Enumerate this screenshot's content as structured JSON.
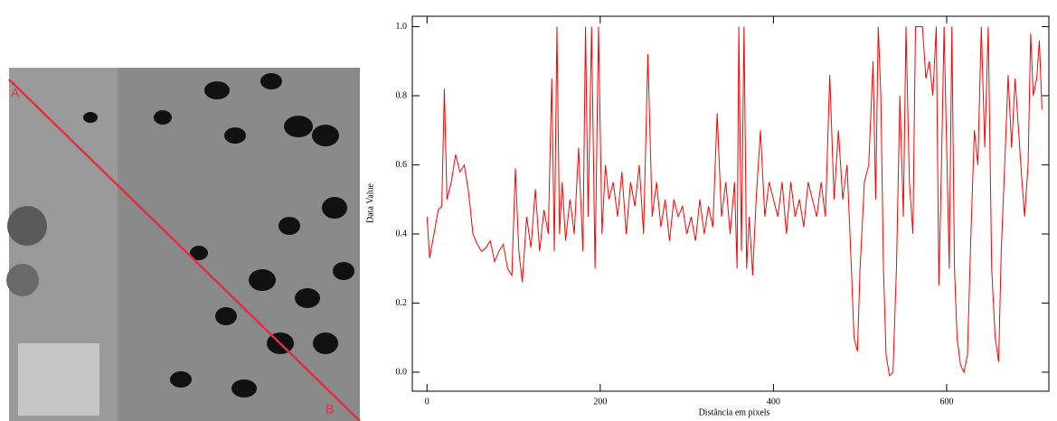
{
  "chart_data": {
    "type": "line",
    "x_label": "Distância em pixels",
    "y_label": "Data Value",
    "annotations": [
      "A",
      "B"
    ],
    "xlim": [
      -17,
      718
    ],
    "ylim": [
      -0.055,
      1.03
    ],
    "xticks": [
      0,
      200,
      400,
      600
    ],
    "yticks": [
      {
        "value": 0,
        "label": "0.0"
      },
      0.2,
      0.4,
      0.6,
      0.8,
      {
        "value": 1,
        "label": "1.0"
      }
    ],
    "series": [
      {
        "color": "#ff0000",
        "x": [
          0,
          3,
          8,
          13,
          17,
          20,
          23,
          28,
          33,
          38,
          43,
          48,
          53,
          58,
          63,
          68,
          73,
          78,
          83,
          88,
          93,
          98,
          102,
          106,
          110,
          115,
          120,
          125,
          130,
          135,
          140,
          144,
          147,
          150,
          153,
          156,
          160,
          165,
          170,
          175,
          180,
          183,
          186,
          190,
          194,
          198,
          202,
          206,
          210,
          215,
          220,
          225,
          230,
          235,
          240,
          245,
          250,
          255,
          260,
          265,
          270,
          275,
          280,
          285,
          290,
          295,
          300,
          305,
          310,
          315,
          320,
          325,
          330,
          335,
          340,
          345,
          350,
          355,
          358,
          360,
          363,
          366,
          369,
          372,
          376,
          380,
          385,
          390,
          395,
          400,
          405,
          410,
          415,
          420,
          425,
          430,
          435,
          440,
          445,
          450,
          455,
          460,
          465,
          470,
          475,
          480,
          485,
          490,
          493,
          497,
          500,
          505,
          510,
          515,
          518,
          521,
          524,
          527,
          530,
          534,
          538,
          542,
          546,
          550,
          553,
          557,
          561,
          564,
          568,
          572,
          576,
          580,
          584,
          588,
          591,
          594,
          597,
          600,
          603,
          606,
          609,
          612,
          616,
          620,
          624,
          628,
          632,
          636,
          640,
          644,
          648,
          652,
          656,
          660,
          663,
          667,
          671,
          675,
          679,
          683,
          687,
          690,
          694,
          697,
          700,
          704,
          707,
          710
        ],
        "values": [
          0.45,
          0.33,
          0.4,
          0.47,
          0.48,
          0.82,
          0.5,
          0.55,
          0.63,
          0.58,
          0.6,
          0.52,
          0.4,
          0.37,
          0.35,
          0.36,
          0.38,
          0.32,
          0.35,
          0.37,
          0.3,
          0.28,
          0.59,
          0.35,
          0.26,
          0.45,
          0.36,
          0.53,
          0.35,
          0.47,
          0.4,
          0.85,
          0.35,
          1.0,
          0.4,
          0.55,
          0.38,
          0.5,
          0.4,
          0.65,
          0.35,
          1.0,
          0.45,
          1.0,
          0.3,
          1.0,
          0.4,
          0.6,
          0.5,
          0.55,
          0.45,
          0.58,
          0.4,
          0.55,
          0.48,
          0.6,
          0.4,
          0.92,
          0.45,
          0.55,
          0.42,
          0.5,
          0.38,
          0.5,
          0.45,
          0.48,
          0.4,
          0.45,
          0.38,
          0.5,
          0.4,
          0.48,
          0.42,
          0.75,
          0.45,
          0.55,
          0.4,
          0.55,
          0.3,
          1.0,
          0.35,
          1.0,
          0.3,
          0.45,
          0.28,
          0.5,
          0.7,
          0.45,
          0.55,
          0.5,
          0.45,
          0.55,
          0.4,
          0.55,
          0.45,
          0.5,
          0.42,
          0.55,
          0.5,
          0.45,
          0.55,
          0.45,
          0.86,
          0.5,
          0.7,
          0.5,
          0.6,
          0.3,
          0.1,
          0.06,
          0.3,
          0.55,
          0.6,
          0.9,
          0.5,
          1.0,
          0.8,
          0.3,
          0.05,
          -0.01,
          0.0,
          0.3,
          0.8,
          0.45,
          1.0,
          0.55,
          0.4,
          1.0,
          1.0,
          1.0,
          0.85,
          0.9,
          0.8,
          1.0,
          0.25,
          0.6,
          1.0,
          0.65,
          0.3,
          1.0,
          0.3,
          0.1,
          0.02,
          0.0,
          0.05,
          0.4,
          0.7,
          0.6,
          1.0,
          0.65,
          1.0,
          0.3,
          0.1,
          0.03,
          0.35,
          0.6,
          0.86,
          0.65,
          0.85,
          0.7,
          0.55,
          0.45,
          0.6,
          0.98,
          0.8,
          0.85,
          0.96,
          0.76
        ]
      }
    ]
  }
}
